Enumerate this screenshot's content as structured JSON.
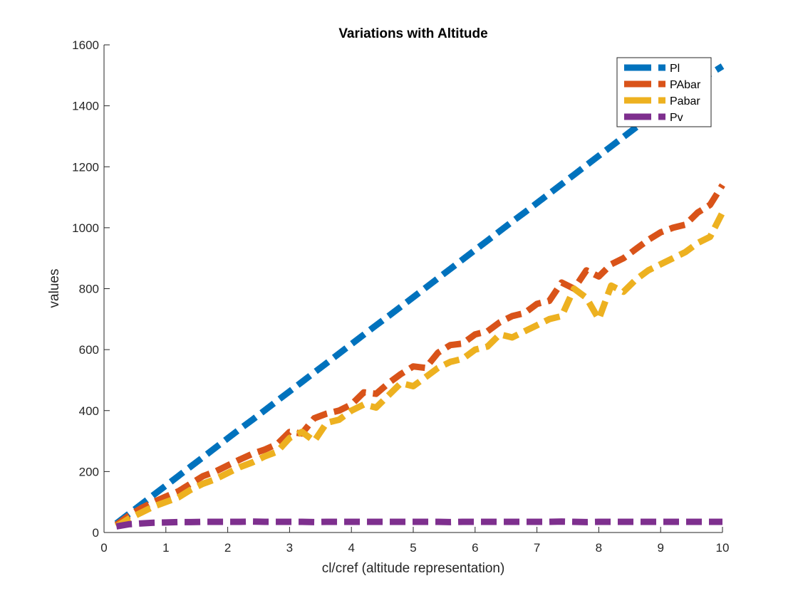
{
  "chart_data": {
    "type": "line",
    "title": "Variations with Altitude",
    "xlabel": "cl/cref (altitude representation)",
    "ylabel": "values",
    "xlim": [
      0,
      10
    ],
    "ylim": [
      0,
      1600
    ],
    "xticks": [
      0,
      1,
      2,
      3,
      4,
      5,
      6,
      7,
      8,
      9,
      10
    ],
    "yticks": [
      0,
      200,
      400,
      600,
      800,
      1000,
      1200,
      1400,
      1600
    ],
    "grid": false,
    "legend_location": "top-right",
    "line_style": "dashed",
    "x": [
      0.2,
      0.4,
      0.6,
      0.8,
      1.0,
      1.2,
      1.4,
      1.6,
      1.8,
      2.0,
      2.2,
      2.4,
      2.6,
      2.8,
      3.0,
      3.2,
      3.4,
      3.6,
      3.8,
      4.0,
      4.2,
      4.4,
      4.6,
      4.8,
      5.0,
      5.2,
      5.4,
      5.6,
      5.8,
      6.0,
      6.2,
      6.4,
      6.6,
      6.8,
      7.0,
      7.2,
      7.4,
      7.6,
      7.8,
      8.0,
      8.2,
      8.4,
      8.6,
      8.8,
      9.0,
      9.2,
      9.4,
      9.6,
      9.8,
      10.0
    ],
    "series": [
      {
        "name": "Pl",
        "color": "#0072BD",
        "values": [
          30,
          61,
          92,
          123,
          154,
          185,
          216,
          247,
          278,
          309,
          340,
          370,
          401,
          432,
          463,
          494,
          525,
          556,
          587,
          618,
          649,
          680,
          710,
          741,
          772,
          803,
          834,
          865,
          896,
          927,
          958,
          989,
          1020,
          1050,
          1081,
          1112,
          1143,
          1174,
          1205,
          1236,
          1267,
          1298,
          1329,
          1360,
          1390,
          1421,
          1452,
          1483,
          1505,
          1530
        ]
      },
      {
        "name": "PAbar",
        "color": "#D95319",
        "values": [
          25,
          55,
          80,
          100,
          118,
          135,
          160,
          185,
          200,
          220,
          240,
          258,
          272,
          290,
          330,
          325,
          375,
          390,
          400,
          420,
          460,
          455,
          490,
          520,
          545,
          540,
          590,
          615,
          620,
          650,
          660,
          690,
          710,
          720,
          750,
          760,
          820,
          800,
          860,
          840,
          880,
          900,
          930,
          960,
          985,
          1000,
          1010,
          1050,
          1075,
          1140
        ]
      },
      {
        "name": "Pabar",
        "color": "#EDB120",
        "values": [
          20,
          45,
          65,
          85,
          100,
          115,
          140,
          160,
          175,
          195,
          215,
          230,
          250,
          265,
          310,
          330,
          300,
          360,
          370,
          400,
          420,
          410,
          450,
          490,
          480,
          510,
          540,
          560,
          570,
          600,
          610,
          650,
          640,
          660,
          680,
          700,
          710,
          800,
          770,
          700,
          810,
          790,
          830,
          860,
          880,
          900,
          920,
          950,
          970,
          1050
        ]
      },
      {
        "name": "Pv",
        "color": "#7E2F8E",
        "values": [
          20,
          27,
          30,
          32,
          33,
          34,
          34,
          35,
          35,
          35,
          35,
          36,
          35,
          35,
          35,
          35,
          34,
          35,
          35,
          35,
          35,
          35,
          35,
          35,
          35,
          35,
          35,
          34,
          35,
          35,
          35,
          35,
          35,
          35,
          35,
          35,
          36,
          35,
          34,
          35,
          35,
          35,
          35,
          35,
          35,
          35,
          35,
          35,
          35,
          35
        ]
      }
    ]
  }
}
